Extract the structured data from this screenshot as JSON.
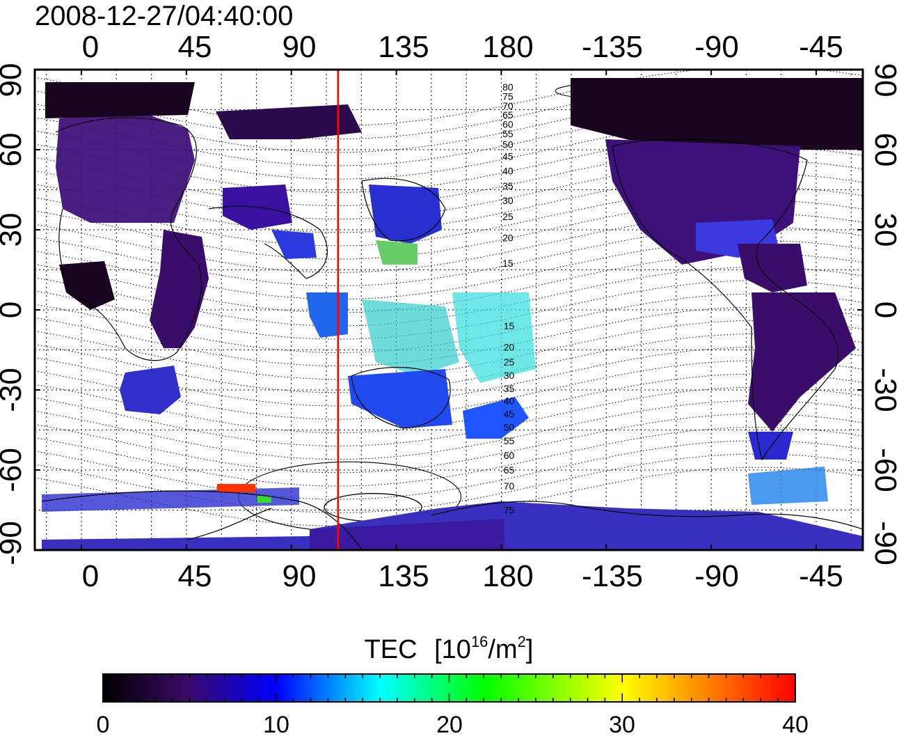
{
  "header": {
    "timestamp": "2008-12-27/04:40:00"
  },
  "map": {
    "quantity_label": "TEC",
    "unit_prefix": "[10",
    "unit_exp1": "16",
    "unit_mid": "/m",
    "unit_exp2": "2",
    "unit_suffix": "]",
    "top_lon_ticks": [
      "0",
      "45",
      "90",
      "135",
      "180",
      "-135",
      "-90",
      "-45"
    ],
    "bottom_lon_ticks": [
      "0",
      "45",
      "90",
      "135",
      "180",
      "-135",
      "-90",
      "-45"
    ],
    "lat_ticks": [
      "90",
      "60",
      "30",
      "0",
      "-30",
      "-60",
      "-90"
    ],
    "magnetic_latitude_labels": {
      "north": [
        "80",
        "75",
        "70",
        "65",
        "60",
        "55",
        "50",
        "45",
        "40",
        "35",
        "30",
        "25",
        "20",
        "15"
      ],
      "south": [
        "15",
        "20",
        "25",
        "30",
        "35",
        "40",
        "45",
        "50",
        "55",
        "60",
        "65",
        "70",
        "75"
      ]
    },
    "marker_longitude": 110,
    "marker_color": "#ff0000",
    "lon_range": [
      -20,
      335
    ],
    "lat_range": [
      -90,
      90
    ]
  },
  "colorbar": {
    "ticks": [
      "0",
      "10",
      "20",
      "30",
      "40"
    ],
    "range": [
      0,
      40
    ],
    "colors": [
      "#000000",
      "#3a0a66",
      "#0000ff",
      "#00ffff",
      "#00ff00",
      "#ffff00",
      "#ff0000"
    ]
  }
}
